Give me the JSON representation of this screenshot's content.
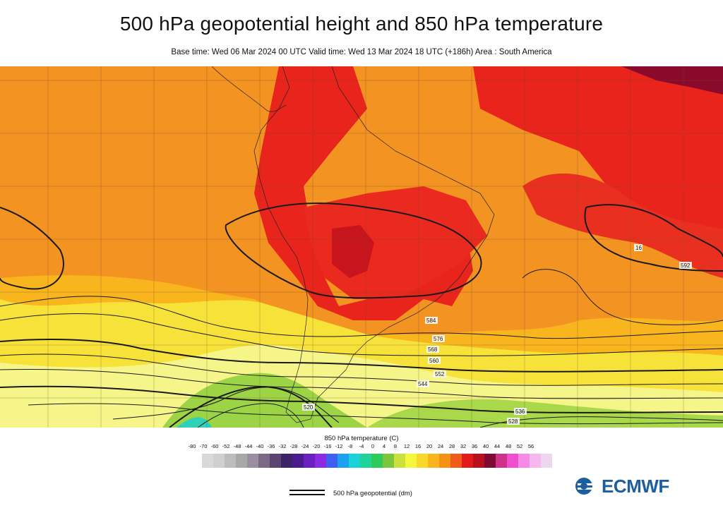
{
  "title": "500 hPa geopotential height and 850 hPa temperature",
  "subtitle": "Base time: Wed 06 Mar 2024 00 UTC Valid time: Wed 13 Mar 2024 18 UTC (+186h) Area : South America",
  "map": {
    "region": "South America",
    "contour_labels": [
      {
        "value": "576"
      },
      {
        "value": "584"
      },
      {
        "value": "568"
      },
      {
        "value": "560"
      },
      {
        "value": "552"
      },
      {
        "value": "544"
      },
      {
        "value": "536"
      },
      {
        "value": "528"
      },
      {
        "value": "520"
      },
      {
        "value": "592"
      },
      {
        "value": "16"
      }
    ]
  },
  "colorbar": {
    "title": "850 hPa temperature (C)",
    "ticks": [
      "-80",
      "-70",
      "-60",
      "-52",
      "-48",
      "-44",
      "-40",
      "-36",
      "-32",
      "-28",
      "-24",
      "-20",
      "-16",
      "-12",
      "-8",
      "-4",
      "0",
      "4",
      "8",
      "12",
      "16",
      "20",
      "24",
      "28",
      "32",
      "36",
      "40",
      "44",
      "48",
      "52",
      "56"
    ],
    "colors": [
      "#d9d9d9",
      "#cfcfcf",
      "#bdbdbd",
      "#a8a8a8",
      "#9a8ea0",
      "#7a6a86",
      "#5a4470",
      "#3c2266",
      "#4b1b8e",
      "#6a1fc0",
      "#8a2be2",
      "#3f5ff2",
      "#1ea0f0",
      "#19d3d8",
      "#1fd39a",
      "#2ecb5a",
      "#7cc63c",
      "#c9e13a",
      "#f6f63a",
      "#f8d92a",
      "#f8b51e",
      "#f59216",
      "#f05a1a",
      "#e21a1a",
      "#b8101e",
      "#7e0a34",
      "#d1308a",
      "#ef4ed1",
      "#f78ae6",
      "#f6b6ee",
      "#efd6ef"
    ]
  },
  "legend": {
    "line_label": "500 hPa geopotential (dm)"
  },
  "logo": {
    "text": "ECMWF"
  }
}
